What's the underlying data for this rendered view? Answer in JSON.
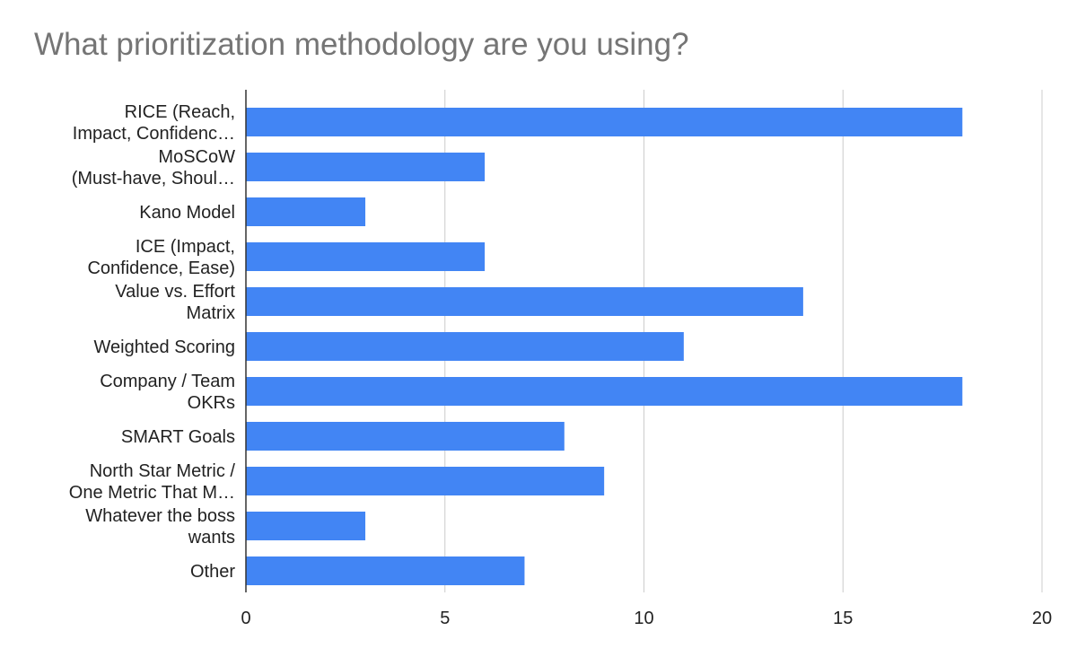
{
  "chart_data": {
    "type": "bar",
    "orientation": "horizontal",
    "title": "What prioritization methodology are you using?",
    "categories": [
      [
        "RICE (Reach,",
        "Impact, Confidenc…"
      ],
      [
        "MoSCoW",
        "(Must-have, Shoul…"
      ],
      [
        "Kano Model"
      ],
      [
        "ICE (Impact,",
        "Confidence, Ease)"
      ],
      [
        "Value vs. Effort",
        "Matrix"
      ],
      [
        "Weighted Scoring"
      ],
      [
        "Company / Team",
        "OKRs"
      ],
      [
        "SMART Goals"
      ],
      [
        "North Star Metric /",
        "One Metric That M…"
      ],
      [
        "Whatever the boss",
        "wants"
      ],
      [
        "Other"
      ]
    ],
    "values": [
      18,
      6,
      3,
      6,
      14,
      11,
      18,
      8,
      9,
      3,
      7
    ],
    "xlim": [
      0,
      20
    ],
    "xticks": [
      "0",
      "5",
      "10",
      "15",
      "20"
    ],
    "grid": true,
    "legend": "none",
    "bar_color": "#4285f4"
  }
}
